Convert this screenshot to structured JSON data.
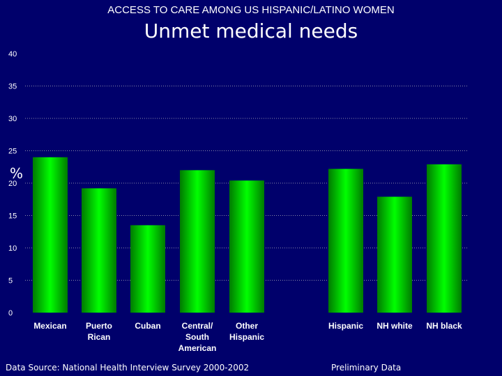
{
  "header": {
    "supertitle": "ACCESS TO CARE AMONG US HISPANIC/LATINO WOMEN",
    "title": "Unmet medical needs"
  },
  "footer": {
    "source": "Data Source:  National Health Interview Survey 2000-2002",
    "note": "Preliminary Data"
  },
  "colors": {
    "background": "#00006b",
    "bar": "#00ff00",
    "bar_dark": "#007a00",
    "grid": "#8a8aa8",
    "text": "#ffffff"
  },
  "chart_data": {
    "type": "bar",
    "title": "Unmet medical needs",
    "xlabel": "",
    "ylabel": "%",
    "ylim": [
      0,
      40
    ],
    "yticks": [
      "0",
      "5",
      "10",
      "15",
      "20",
      "25",
      "30",
      "35",
      "40"
    ],
    "grid": true,
    "categories": [
      [
        "Mexican"
      ],
      [
        "Puerto",
        "Rican"
      ],
      [
        "Cuban"
      ],
      [
        "Central/",
        "South",
        "American"
      ],
      [
        "Other",
        "Hispanic"
      ],
      [
        "Hispanic"
      ],
      [
        "NH white"
      ],
      [
        "NH black"
      ]
    ],
    "values": [
      24,
      19.2,
      13.5,
      22,
      20.4,
      22.2,
      17.9,
      22.9
    ]
  }
}
